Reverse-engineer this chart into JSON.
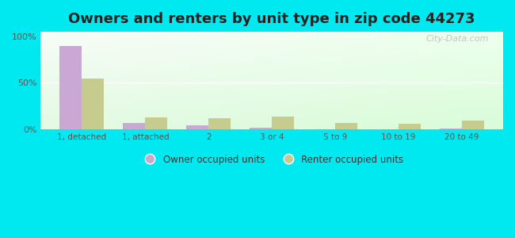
{
  "title": "Owners and renters by unit type in zip code 44273",
  "categories": [
    "1, detached",
    "1, attached",
    "2",
    "3 or 4",
    "5 to 9",
    "10 to 19",
    "20 to 49"
  ],
  "owner_values": [
    90,
    7,
    4,
    2,
    0,
    0,
    1
  ],
  "renter_values": [
    55,
    13,
    12,
    14,
    7,
    6,
    9
  ],
  "owner_color": "#c9a8d4",
  "renter_color": "#c5cc8e",
  "bg_outer": "#00e8f0",
  "title_fontsize": 13,
  "ytick_labels": [
    "0%",
    "50%",
    "100%"
  ],
  "ytick_values": [
    0,
    50,
    100
  ],
  "ylim": [
    0,
    105
  ],
  "bar_width": 0.35,
  "legend_owner": "Owner occupied units",
  "legend_renter": "Renter occupied units",
  "watermark": "City-Data.com",
  "chart_bg_top": "#f8fef4",
  "chart_bg_bottom": "#dff5e3"
}
